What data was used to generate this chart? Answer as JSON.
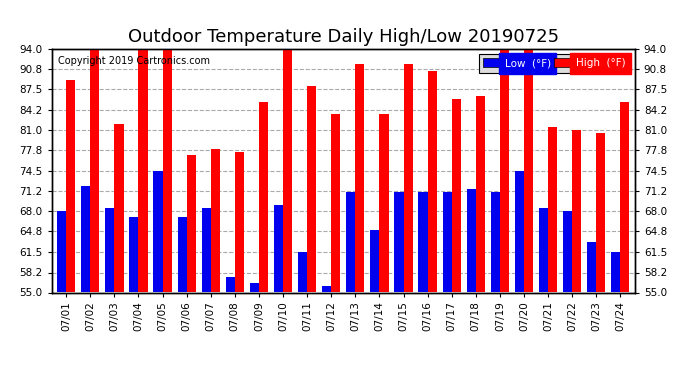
{
  "title": "Outdoor Temperature Daily High/Low 20190725",
  "copyright": "Copyright 2019 Cartronics.com",
  "legend_low": "Low  (°F)",
  "legend_high": "High  (°F)",
  "dates": [
    "07/01",
    "07/02",
    "07/03",
    "07/04",
    "07/05",
    "07/06",
    "07/07",
    "07/08",
    "07/09",
    "07/10",
    "07/11",
    "07/12",
    "07/13",
    "07/14",
    "07/15",
    "07/16",
    "07/17",
    "07/18",
    "07/19",
    "07/20",
    "07/21",
    "07/22",
    "07/23",
    "07/24"
  ],
  "high": [
    89.0,
    94.0,
    82.0,
    94.0,
    94.0,
    77.0,
    78.0,
    77.5,
    85.5,
    94.0,
    88.0,
    83.5,
    91.5,
    83.5,
    91.5,
    90.5,
    86.0,
    86.5,
    94.0,
    94.0,
    81.5,
    81.0,
    80.5,
    85.5
  ],
  "low": [
    68.0,
    72.0,
    68.5,
    67.0,
    74.5,
    67.0,
    68.5,
    57.5,
    56.5,
    69.0,
    61.5,
    56.0,
    71.0,
    65.0,
    71.0,
    71.0,
    71.0,
    71.5,
    71.0,
    74.5,
    68.5,
    68.0,
    63.0,
    61.5
  ],
  "ylim": [
    55.0,
    94.0
  ],
  "yticks": [
    55.0,
    58.2,
    61.5,
    64.8,
    68.0,
    71.2,
    74.5,
    77.8,
    81.0,
    84.2,
    87.5,
    90.8,
    94.0
  ],
  "bar_width": 0.38,
  "low_color": "#0000ee",
  "high_color": "#ff0000",
  "bg_color": "#ffffff",
  "plot_bg_color": "#ffffff",
  "grid_color": "#aaaaaa",
  "title_fontsize": 13,
  "tick_fontsize": 7.5,
  "copyright_fontsize": 7
}
